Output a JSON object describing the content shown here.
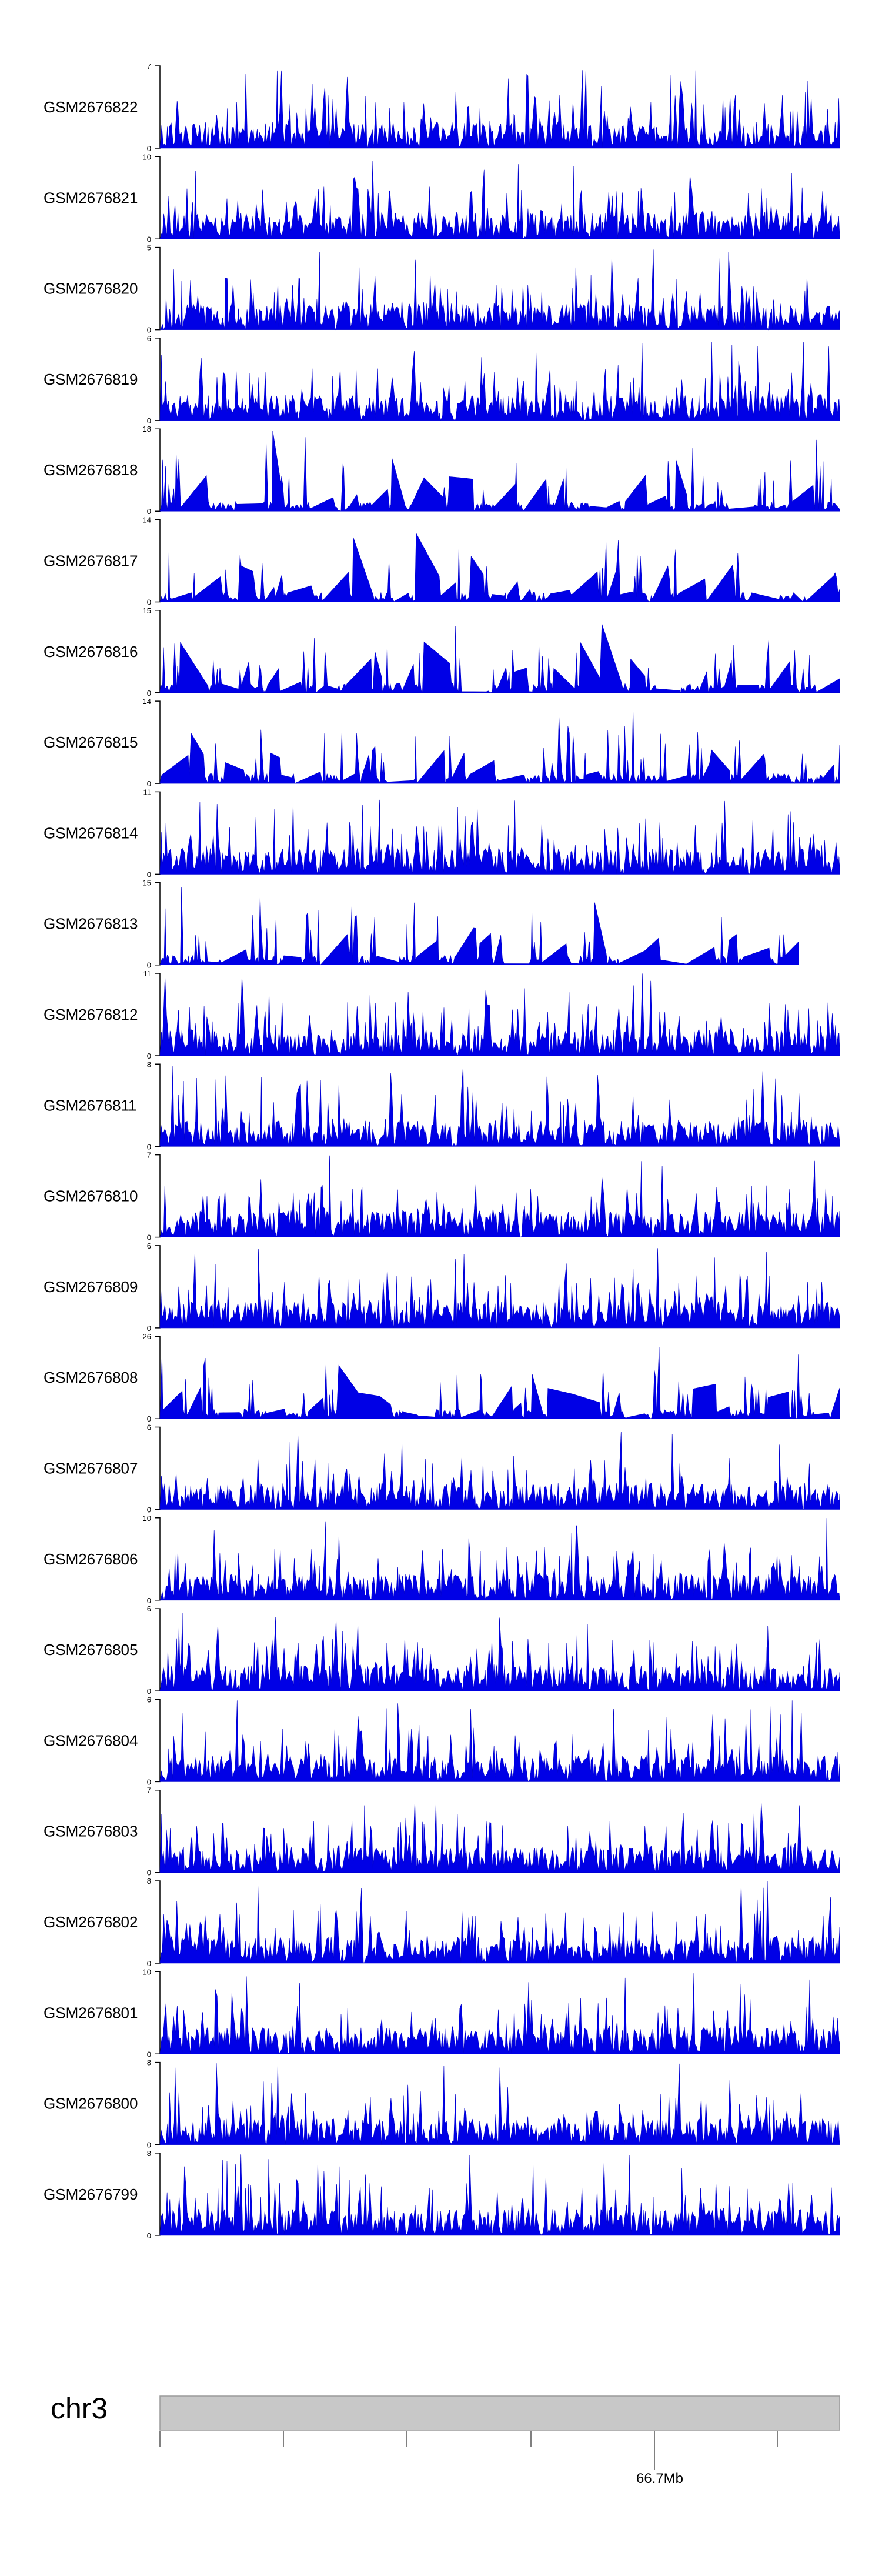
{
  "chart_data": {
    "type": "area",
    "tracks": [
      {
        "name": "GSM2676822",
        "ymax": "7",
        "ymin": "0"
      },
      {
        "name": "GSM2676821",
        "ymax": "10",
        "ymin": "0"
      },
      {
        "name": "GSM2676820",
        "ymax": "5",
        "ymin": "0"
      },
      {
        "name": "GSM2676819",
        "ymax": "6",
        "ymin": "0"
      },
      {
        "name": "GSM2676818",
        "ymax": "18",
        "ymin": "0"
      },
      {
        "name": "GSM2676817",
        "ymax": "14",
        "ymin": "0"
      },
      {
        "name": "GSM2676816",
        "ymax": "15",
        "ymin": "0"
      },
      {
        "name": "GSM2676815",
        "ymax": "14",
        "ymin": "0"
      },
      {
        "name": "GSM2676814",
        "ymax": "11",
        "ymin": "0"
      },
      {
        "name": "GSM2676813",
        "ymax": "15",
        "ymin": "0"
      },
      {
        "name": "GSM2676812",
        "ymax": "11",
        "ymin": "0"
      },
      {
        "name": "GSM2676811",
        "ymax": "8",
        "ymin": "0"
      },
      {
        "name": "GSM2676810",
        "ymax": "7",
        "ymin": "0"
      },
      {
        "name": "GSM2676809",
        "ymax": "6",
        "ymin": "0"
      },
      {
        "name": "GSM2676808",
        "ymax": "26",
        "ymin": "0"
      },
      {
        "name": "GSM2676807",
        "ymax": "6",
        "ymin": "0"
      },
      {
        "name": "GSM2676806",
        "ymax": "10",
        "ymin": "0"
      },
      {
        "name": "GSM2676805",
        "ymax": "6",
        "ymin": "0"
      },
      {
        "name": "GSM2676804",
        "ymax": "6",
        "ymin": "0"
      },
      {
        "name": "GSM2676803",
        "ymax": "7",
        "ymin": "0"
      },
      {
        "name": "GSM2676802",
        "ymax": "8",
        "ymin": "0"
      },
      {
        "name": "GSM2676801",
        "ymax": "10",
        "ymin": "0"
      },
      {
        "name": "GSM2676800",
        "ymax": "8",
        "ymin": "0"
      },
      {
        "name": "GSM2676799",
        "ymax": "8",
        "ymin": "0"
      }
    ],
    "chromosome": "chr3",
    "position_label": "66.7Mb",
    "coverage_color": "#0000e6",
    "ideogram_color": "#c8c8c8"
  }
}
